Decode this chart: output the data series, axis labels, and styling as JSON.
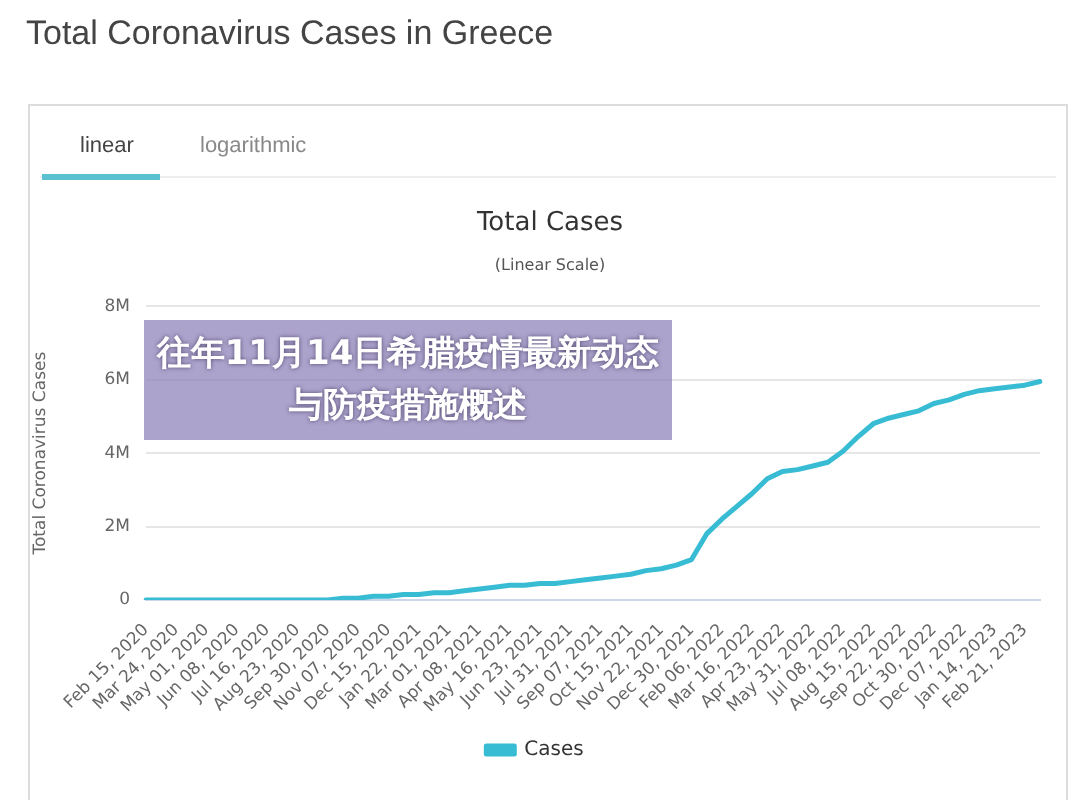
{
  "chart_data": {
    "type": "line",
    "title": "Total Coronavirus Cases in Greece",
    "subtitle": "Total Cases",
    "ylabel": "Total Coronavirus Cases",
    "annotations": [
      "linear",
      "logarithmic",
      "(Linear Scale)",
      "往年11月14日希腊疫情最新动态",
      "与防疫措施概述"
    ],
    "categories": [
      "Feb 15, 2020",
      null,
      "Mar 24, 2020",
      null,
      "May 01, 2020",
      null,
      "Jun 08, 2020",
      null,
      "Jul 16, 2020",
      null,
      "Aug 23, 2020",
      null,
      "Sep 30, 2020",
      null,
      "Nov 07, 2020",
      null,
      "Dec 15, 2020",
      null,
      "Jan 22, 2021",
      null,
      "Mar 01, 2021",
      null,
      "Apr 08, 2021",
      null,
      "May 16, 2021",
      null,
      "Jun 23, 2021",
      null,
      "Jul 31, 2021",
      null,
      "Sep 07, 2021",
      null,
      "Oct 15, 2021",
      null,
      "Nov 22, 2021",
      null,
      "Dec 30, 2021",
      null,
      "Feb 06, 2022",
      null,
      "Mar 16, 2022",
      null,
      "Apr 23, 2022",
      null,
      "May 31, 2022",
      null,
      "Jul 08, 2022",
      null,
      "Aug 15, 2022",
      null,
      "Sep 22, 2022",
      null,
      "Oct 30, 2022",
      null,
      "Dec 07, 2022",
      null,
      "Jan 14, 2023",
      null,
      "Feb 21, 2023",
      null
    ],
    "series": [
      {
        "name": "Cases",
        "color": "#37bcd4",
        "values": [
          0,
          0,
          0,
          0,
          0,
          0,
          0,
          0,
          0,
          0,
          0,
          0,
          0,
          50000,
          50000,
          100000,
          100000,
          150000,
          150000,
          200000,
          200000,
          250000,
          300000,
          350000,
          400000,
          400000,
          450000,
          450000,
          500000,
          550000,
          600000,
          650000,
          700000,
          800000,
          850000,
          950000,
          1100000,
          1800000,
          2200000,
          2550000,
          2900000,
          3300000,
          3500000,
          3550000,
          3650000,
          3750000,
          4050000,
          4450000,
          4800000,
          4950000,
          5050000,
          5150000,
          5350000,
          5450000,
          5600000,
          5700000,
          5750000,
          5800000,
          5850000,
          5950000
        ]
      }
    ],
    "ylim": [
      0,
      8000000
    ],
    "yticks": [
      0,
      {
        "value": 2000000,
        "label": "2M"
      },
      {
        "value": 4000000,
        "label": "4M"
      },
      {
        "value": 6000000,
        "label": "6M"
      },
      {
        "value": 8000000,
        "label": "8M"
      }
    ],
    "grid": "y",
    "legend": "bottom",
    "marker": "none",
    "line_style": "solid"
  }
}
